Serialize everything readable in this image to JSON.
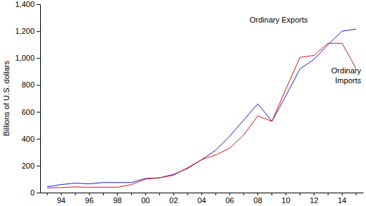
{
  "chart_data": {
    "type": "line",
    "y_label": "Billions of U.S. dollars",
    "categories": [
      null,
      "94",
      null,
      "96",
      null,
      "98",
      null,
      "00",
      null,
      "02",
      null,
      "04",
      null,
      "06",
      null,
      "08",
      null,
      "10",
      null,
      "12",
      null,
      "14",
      null
    ],
    "series": [
      {
        "name": "Ordinary Exports",
        "color": "#1c1cd4",
        "values": [
          43,
          60,
          70,
          65,
          75,
          75,
          75,
          105,
          110,
          135,
          180,
          245,
          315,
          420,
          540,
          660,
          530,
          720,
          920,
          990,
          1100,
          1200,
          1215
        ]
      },
      {
        "name": "Ordinary Imports",
        "color": "#e01010",
        "values": [
          35,
          38,
          42,
          40,
          40,
          40,
          60,
          100,
          110,
          130,
          185,
          245,
          280,
          330,
          430,
          570,
          530,
          770,
          1005,
          1020,
          1110,
          1110,
          920
        ]
      }
    ],
    "ylim": [
      0,
      1400
    ],
    "yticks": [
      0,
      200,
      400,
      600,
      800,
      {
        "value": 1000,
        "label": "1,000"
      },
      {
        "value": 1200,
        "label": "1,200"
      },
      {
        "value": 1400,
        "label": "1,400"
      }
    ],
    "grid": false
  }
}
